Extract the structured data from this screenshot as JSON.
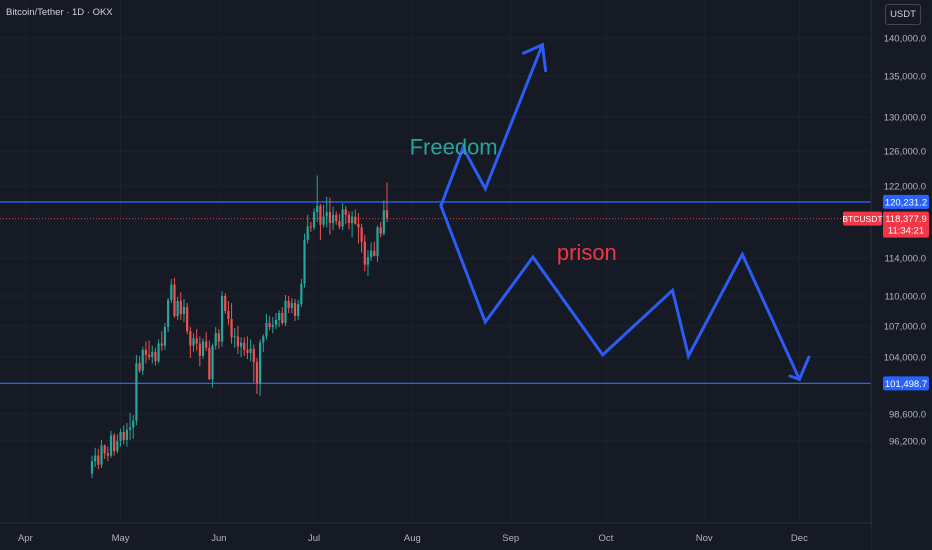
{
  "header": {
    "symbol_title": "Bitcoin/Tether · 1D · OKX",
    "currency": "USDT"
  },
  "colors": {
    "up": "#26a69a",
    "down": "#ef5350",
    "level": "#2962ff",
    "arrow": "#2d5cf5",
    "freedom": "#26a69a",
    "prison": "#f23645"
  },
  "chart_data": {
    "type": "candlestick",
    "title": "Bitcoin/Tether · 1D · OKX",
    "symbol": "BTCUSDT",
    "price_scale_labels": [
      "140,000.0",
      "135,000.0",
      "130,000.0",
      "126,000.0",
      "122,000.0",
      "114,000.0",
      "110,000.0",
      "107,000.0",
      "104,000.0",
      "98,600.0",
      "96,200.0"
    ],
    "price_scale_values": [
      140000,
      135000,
      130000,
      126000,
      122000,
      114000,
      110000,
      107000,
      104000,
      98600,
      96200
    ],
    "time_labels": [
      "Apr",
      "May",
      "Jun",
      "Jul",
      "Aug",
      "Sep",
      "Oct",
      "Nov",
      "Dec"
    ],
    "time_values": [
      "2025-04-01",
      "2025-05-01",
      "2025-06-01",
      "2025-07-01",
      "2025-08-01",
      "2025-09-01",
      "2025-10-01",
      "2025-11-01",
      "2025-12-01"
    ],
    "visible_date_range": [
      "2025-03-24",
      "2025-12-22"
    ],
    "ohlc_first_date": "2025-04-22",
    "ohlc": [
      [
        93300,
        94900,
        92900,
        94400
      ],
      [
        94400,
        95600,
        93900,
        94900
      ],
      [
        94900,
        95500,
        93700,
        94100
      ],
      [
        94100,
        96300,
        93800,
        95800
      ],
      [
        95800,
        95900,
        94600,
        95100
      ],
      [
        95100,
        95700,
        94400,
        94900
      ],
      [
        94900,
        97100,
        94700,
        96700
      ],
      [
        96700,
        96900,
        94900,
        95300
      ],
      [
        95300,
        96800,
        95100,
        96200
      ],
      [
        96200,
        97300,
        95700,
        97000
      ],
      [
        97000,
        97600,
        95900,
        96300
      ],
      [
        96300,
        97800,
        95700,
        97200
      ],
      [
        97200,
        98700,
        96300,
        97400
      ],
      [
        97400,
        98500,
        96400,
        98000
      ],
      [
        98000,
        104200,
        97600,
        103400
      ],
      [
        103400,
        104100,
        102500,
        102700
      ],
      [
        102700,
        105000,
        102300,
        104700
      ],
      [
        104700,
        105500,
        103400,
        104200
      ],
      [
        104200,
        105600,
        103700,
        104000
      ],
      [
        104000,
        105100,
        103400,
        104500
      ],
      [
        104500,
        104900,
        103200,
        103600
      ],
      [
        103600,
        105700,
        103400,
        105300
      ],
      [
        105300,
        106500,
        104600,
        105100
      ],
      [
        105100,
        107300,
        104700,
        106900
      ],
      [
        106900,
        109800,
        106400,
        109600
      ],
      [
        109600,
        111800,
        109300,
        111200
      ],
      [
        111200,
        111900,
        107800,
        108000
      ],
      [
        108000,
        109900,
        107600,
        109500
      ],
      [
        109500,
        110400,
        107600,
        108200
      ],
      [
        108200,
        109700,
        107400,
        108900
      ],
      [
        108900,
        109300,
        106200,
        106500
      ],
      [
        106500,
        106900,
        103900,
        105100
      ],
      [
        105100,
        106300,
        104500,
        105800
      ],
      [
        105800,
        106700,
        104600,
        105300
      ],
      [
        105300,
        106000,
        103100,
        104100
      ],
      [
        104100,
        105800,
        103800,
        105500
      ],
      [
        105500,
        106400,
        104600,
        104900
      ],
      [
        104900,
        105600,
        101800,
        101900
      ],
      [
        101900,
        105300,
        101100,
        105100
      ],
      [
        105100,
        106900,
        104700,
        106300
      ],
      [
        106300,
        106700,
        104800,
        105500
      ],
      [
        105500,
        110500,
        105000,
        110000
      ],
      [
        110000,
        110300,
        108200,
        108500
      ],
      [
        108500,
        109500,
        107100,
        107700
      ],
      [
        107700,
        109300,
        105300,
        105900
      ],
      [
        105900,
        106800,
        104900,
        106000
      ],
      [
        106000,
        107000,
        104300,
        105000
      ],
      [
        105000,
        105900,
        104000,
        105400
      ],
      [
        105400,
        105900,
        104100,
        104700
      ],
      [
        104700,
        106000,
        103800,
        104400
      ],
      [
        104400,
        105700,
        103600,
        104800
      ],
      [
        104800,
        105200,
        101600,
        103500
      ],
      [
        103500,
        103900,
        100500,
        101500
      ],
      [
        101500,
        105700,
        100300,
        105400
      ],
      [
        105400,
        106200,
        104500,
        106000
      ],
      [
        106000,
        108200,
        105700,
        107300
      ],
      [
        107300,
        108000,
        106600,
        106900
      ],
      [
        106900,
        107900,
        106300,
        107100
      ],
      [
        107100,
        108300,
        106700,
        107600
      ],
      [
        107600,
        108600,
        106900,
        108300
      ],
      [
        108300,
        108900,
        107100,
        107300
      ],
      [
        107300,
        110100,
        107000,
        109500
      ],
      [
        109500,
        110000,
        108300,
        108800
      ],
      [
        108800,
        109800,
        108300,
        109300
      ],
      [
        109300,
        109700,
        107500,
        108000
      ],
      [
        108000,
        109600,
        107600,
        109200
      ],
      [
        109200,
        111800,
        108900,
        111300
      ],
      [
        111300,
        116700,
        110900,
        116000
      ],
      [
        116000,
        118800,
        115600,
        117500
      ],
      [
        117500,
        118000,
        116900,
        117400
      ],
      [
        117400,
        119500,
        117100,
        119100
      ],
      [
        119100,
        123200,
        118000,
        119800
      ],
      [
        119800,
        120000,
        116000,
        117700
      ],
      [
        117700,
        119900,
        117400,
        118600
      ],
      [
        118600,
        120800,
        117400,
        119100
      ],
      [
        119100,
        120700,
        116600,
        117900
      ],
      [
        117900,
        119700,
        117100,
        118800
      ],
      [
        118800,
        119200,
        117700,
        118100
      ],
      [
        118100,
        118900,
        117200,
        117500
      ],
      [
        117500,
        120100,
        117100,
        119400
      ],
      [
        119400,
        119800,
        117800,
        118800
      ],
      [
        118800,
        119200,
        117200,
        117900
      ],
      [
        117900,
        119200,
        116300,
        118600
      ],
      [
        118600,
        119400,
        117700,
        117800
      ],
      [
        117800,
        119000,
        115600,
        117400
      ],
      [
        117400,
        117800,
        114600,
        115800
      ],
      [
        115800,
        116600,
        112600,
        113300
      ],
      [
        113300,
        114900,
        112100,
        114100
      ],
      [
        114100,
        115700,
        113700,
        114800
      ],
      [
        114800,
        115800,
        114200,
        114200
      ],
      [
        114200,
        117600,
        113600,
        117400
      ],
      [
        117400,
        118000,
        116300,
        116700
      ],
      [
        116700,
        120400,
        116500,
        119300
      ],
      [
        119300,
        122400,
        118000,
        118378
      ]
    ],
    "levels": [
      {
        "name": "resistance",
        "price": 120231.2,
        "label": "120,231.2"
      },
      {
        "name": "support",
        "price": 101498.7,
        "label": "101,498.7"
      }
    ],
    "current_price": {
      "symbol": "BTCUSDT",
      "price_label": "118,377.9",
      "countdown": "11:34:21",
      "price": 118378
    },
    "annotations": [
      {
        "name": "freedom",
        "text": "Freedom",
        "anchor": [
          "2025-08-14",
          125600
        ]
      },
      {
        "name": "prison",
        "text": "prison",
        "anchor": [
          "2025-09-25",
          113800
        ]
      }
    ],
    "scenarios": [
      {
        "name": "bullish-path",
        "points": [
          [
            "2025-08-10",
            119800
          ],
          [
            "2025-08-17",
            126400
          ],
          [
            "2025-08-24",
            121700
          ],
          [
            "2025-09-11",
            139100
          ]
        ],
        "head": [
          [
            "2025-09-05",
            138000
          ],
          [
            "2025-09-11",
            139100
          ],
          [
            "2025-09-12",
            135700
          ]
        ]
      },
      {
        "name": "bearish-path",
        "points": [
          [
            "2025-08-10",
            119800
          ],
          [
            "2025-08-24",
            107400
          ],
          [
            "2025-09-08",
            114100
          ],
          [
            "2025-09-30",
            104200
          ],
          [
            "2025-10-22",
            110600
          ],
          [
            "2025-10-27",
            104100
          ],
          [
            "2025-11-13",
            114400
          ],
          [
            "2025-12-01",
            101900
          ]
        ],
        "head": [
          [
            "2025-11-28",
            102200
          ],
          [
            "2025-12-01",
            101900
          ],
          [
            "2025-12-04",
            104000
          ]
        ]
      }
    ]
  }
}
